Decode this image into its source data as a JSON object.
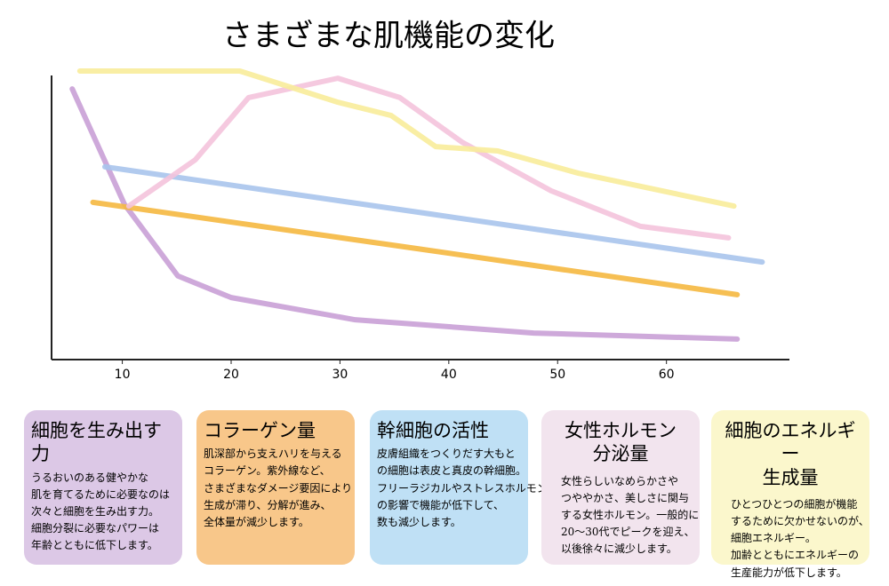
{
  "chart_data": {
    "type": "line",
    "title": "さまざまな肌機能の変化",
    "xlim": [
      3.5,
      71.3
    ],
    "ylim": [
      0,
      100
    ],
    "xticks": [
      10,
      20,
      30,
      40,
      50,
      60
    ],
    "series": [
      {
        "name": "細胞を生み出す力",
        "color": "#c9a0d6",
        "card_color": "#dcc8e6",
        "x": [
          5.4,
          10.2,
          15.1,
          20,
          31.4,
          47.8,
          66.5
        ],
        "values": [
          93.8,
          53.8,
          29,
          21.5,
          13.8,
          9.2,
          7.1
        ],
        "description": [
          "うるおいのある健やかな",
          "肌を育てるために必要なのは",
          "次々と細胞を生み出す力。",
          "細胞分裂に必要なパワーは",
          "年齢とともに低下します。"
        ]
      },
      {
        "name": "コラーゲン量",
        "color": "#f5b840",
        "card_color": "#f8c78a",
        "x": [
          7.3,
          37,
          66.5
        ],
        "values": [
          54.5,
          38.5,
          22.5
        ],
        "description": [
          "肌深部から支えハリを与える",
          "コラーゲン。紫外線など、",
          "さまざまなダメージ要因により",
          "生成が滞り、分解が進み、",
          "全体量が減少します。"
        ]
      },
      {
        "name": "幹細胞の活性",
        "color": "#a9c4ec",
        "card_color": "#bfe0f5",
        "x": [
          8.4,
          38.6,
          68.8
        ],
        "values": [
          66.8,
          50.3,
          33.8
        ],
        "description": [
          "皮膚組織をつくりだす大もと",
          "の細胞は表皮と真皮の幹細胞。",
          "フリーラジカルやストレスホルモン",
          "の影響で機能が低下して、",
          "数も減少します。"
        ]
      },
      {
        "name": "女性ホルモン\n分泌量",
        "color": "#f4c3dc",
        "card_color": "#f2e4ee",
        "x": [
          10.6,
          16.7,
          21.6,
          29.8,
          35.5,
          41.2,
          49.4,
          57.6,
          65.7
        ],
        "values": [
          53.2,
          69.2,
          90.8,
          97.5,
          90.8,
          75.4,
          58.5,
          46.2,
          42.2
        ],
        "description": [
          "女性らしいなめらかさや",
          "つややかさ、美しさに関与",
          "する女性ホルモン。一般的に",
          "20～30代でピークを迎え、",
          "以後徐々に減少します。"
        ]
      },
      {
        "name": "細胞のエネルギー\n生成量",
        "color": "#f8ec9a",
        "card_color": "#fbf7cc",
        "x": [
          6.1,
          20.8,
          29.8,
          34.7,
          38.8,
          44.5,
          51.9,
          66.2
        ],
        "values": [
          100,
          100,
          89.2,
          84.6,
          73.8,
          72.3,
          64.6,
          53.2
        ],
        "description": [
          "ひとつひとつの細胞が機能",
          "するために欠かせないのが、",
          "細胞エネルギー。",
          "加齢とともにエネルギーの",
          "生産能力が低下します。"
        ]
      }
    ]
  }
}
